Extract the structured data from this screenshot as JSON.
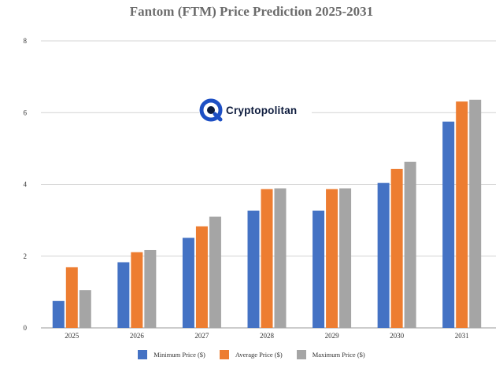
{
  "chart_data": {
    "type": "bar",
    "title": "Fantom (FTM) Price Prediction 2025-2031",
    "xlabel": "",
    "ylabel": "",
    "categories": [
      "2025",
      "2026",
      "2027",
      "2028",
      "2029",
      "2030",
      "2031"
    ],
    "series": [
      {
        "name": "Minimum Price ($)",
        "color": "#4472c4",
        "values": [
          0.75,
          1.83,
          2.51,
          3.27,
          3.27,
          4.04,
          5.75
        ]
      },
      {
        "name": "Average Price ($)",
        "color": "#ed7d31",
        "values": [
          1.69,
          2.11,
          2.83,
          3.87,
          3.87,
          4.43,
          6.31
        ]
      },
      {
        "name": "Maximum Price ($)",
        "color": "#a5a5a5",
        "values": [
          1.05,
          2.17,
          3.1,
          3.89,
          3.89,
          4.63,
          6.36
        ]
      }
    ],
    "ylim": [
      0,
      8
    ],
    "yticks": [
      "0",
      "2",
      "4",
      "6",
      "8"
    ],
    "grid": true,
    "legend": "bottom"
  },
  "watermark": {
    "text": "Cryptopolitan",
    "icon": "cryptopolitan-logo-icon"
  }
}
